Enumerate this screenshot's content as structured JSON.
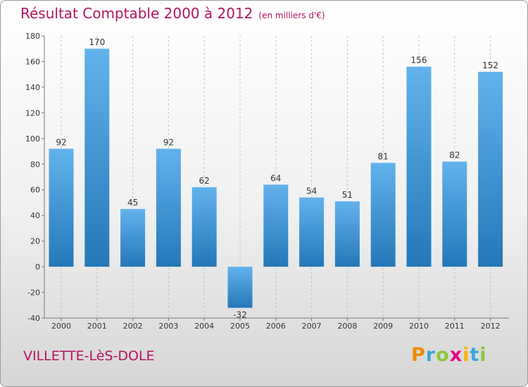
{
  "header": {
    "title": "Résultat Comptable 2000 à 2012",
    "subtitle": "(en milliers d'€)"
  },
  "footer": {
    "town": "VILLETTE-LèS-DOLE",
    "logo_letters": [
      "P",
      "r",
      "o",
      "x",
      "i",
      "t",
      "i"
    ],
    "logo_colors": [
      "#f08a00",
      "#3aa8d8",
      "#8dc63f",
      "#e6007e",
      "#f7b500",
      "#3aa8d8",
      "#8dc63f"
    ]
  },
  "colors": {
    "bar_top": "#62b2ec",
    "bar_bottom": "#2478b8",
    "title": "#b5135f",
    "grid": "#c4c4c4"
  },
  "chart_data": {
    "type": "bar",
    "title": "Résultat Comptable 2000 à 2012",
    "subtitle": "(en milliers d'€)",
    "categories": [
      "2000",
      "2001",
      "2002",
      "2003",
      "2004",
      "2005",
      "2006",
      "2007",
      "2008",
      "2009",
      "2010",
      "2011",
      "2012"
    ],
    "values": [
      92,
      170,
      45,
      92,
      62,
      -32,
      64,
      54,
      51,
      81,
      156,
      82,
      152
    ],
    "value_labels": [
      "92",
      "170",
      "45",
      "92",
      "62",
      "-32",
      "64",
      "54",
      "51",
      "81",
      "156",
      "82",
      "152"
    ],
    "ylim": [
      -40,
      180
    ],
    "yticks": [
      -40,
      -20,
      0,
      20,
      40,
      60,
      80,
      100,
      120,
      140,
      160,
      180
    ],
    "ytick_labels": [
      "-40",
      "-20",
      "0",
      "20",
      "40",
      "60",
      "80",
      "100",
      "120",
      "140",
      "160",
      "180"
    ],
    "grid": "vertical-dashed",
    "xlabel": "",
    "ylabel": ""
  }
}
